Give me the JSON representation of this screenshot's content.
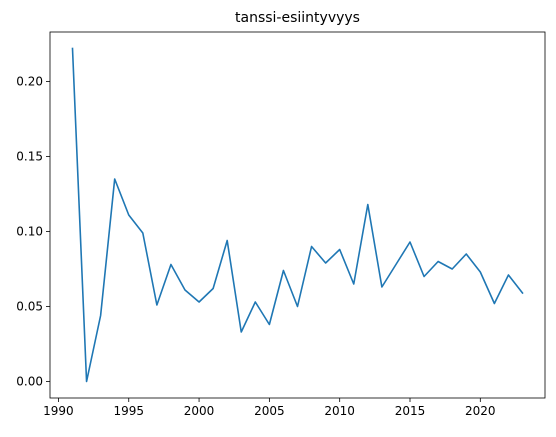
{
  "chart_data": {
    "type": "line",
    "title": "tanssi-esiintyvyys",
    "xlabel": "",
    "ylabel": "",
    "xlim": [
      1989.4,
      2024.6
    ],
    "ylim": [
      -0.011,
      0.233
    ],
    "grid": false,
    "legend": "none",
    "x_ticks": [
      1990,
      1995,
      2000,
      2005,
      2010,
      2015,
      2020
    ],
    "x_tick_labels": [
      "1990",
      "1995",
      "2000",
      "2005",
      "2010",
      "2015",
      "2020"
    ],
    "y_ticks": [
      0.0,
      0.05,
      0.1,
      0.15,
      0.2
    ],
    "y_tick_labels": [
      "0.00",
      "0.05",
      "0.10",
      "0.15",
      "0.20"
    ],
    "series": [
      {
        "color": "#1f77b4",
        "x": [
          1991,
          1992,
          1993,
          1994,
          1995,
          1996,
          1997,
          1998,
          1999,
          2000,
          2001,
          2002,
          2003,
          2004,
          2005,
          2006,
          2007,
          2008,
          2009,
          2010,
          2011,
          2012,
          2013,
          2014,
          2015,
          2016,
          2017,
          2018,
          2019,
          2020,
          2021,
          2022,
          2023
        ],
        "values": [
          0.222,
          0.0,
          0.044,
          0.135,
          0.111,
          0.099,
          0.051,
          0.078,
          0.061,
          0.053,
          0.062,
          0.094,
          0.033,
          0.053,
          0.038,
          0.074,
          0.05,
          0.09,
          0.079,
          0.088,
          0.065,
          0.118,
          0.063,
          0.078,
          0.093,
          0.07,
          0.08,
          0.075,
          0.085,
          0.073,
          0.052,
          0.071,
          0.059
        ]
      }
    ]
  }
}
